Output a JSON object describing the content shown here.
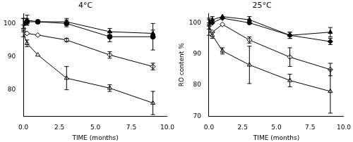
{
  "chart_data": [
    {
      "type": "line",
      "title": "4°C",
      "x_label": "TIME (months)",
      "x": [
        0,
        0.25,
        1,
        3,
        6,
        9
      ],
      "xlim": [
        0,
        10
      ],
      "xticks": [
        {
          "value": 0,
          "label": "0.0"
        },
        {
          "value": 2.5,
          "label": "2.5"
        },
        {
          "value": 5,
          "label": "5.0"
        },
        {
          "value": 7.5,
          "label": "7.5"
        },
        {
          "value": 10,
          "label": "10.0"
        }
      ],
      "ylim": [
        72,
        103
      ],
      "yticks": [
        80,
        90,
        100
      ],
      "grid": false,
      "series": [
        {
          "color": "#000000",
          "marker": "circle",
          "line_style": "solid",
          "values": [
            100,
            100.5,
            100.5,
            100,
            96,
            96
          ],
          "errors": [
            1.5,
            1,
            null,
            1,
            1.5,
            4
          ]
        },
        {
          "color": "#000000",
          "marker": "triangle",
          "line_style": "solid",
          "values": [
            100,
            101,
            100.5,
            100.5,
            97.5,
            97
          ],
          "errors": [
            1.5,
            1.5,
            null,
            1,
            1,
            1
          ]
        },
        {
          "color": "#000000",
          "marker": "open-diamond",
          "line_style": "solid",
          "values": [
            98.5,
            97,
            96.5,
            95,
            90.5,
            87
          ],
          "errors": [
            1,
            null,
            null,
            0.5,
            1,
            1
          ]
        },
        {
          "color": "#000000",
          "marker": "open-triangle",
          "line_style": "solid",
          "values": [
            97,
            94,
            90.5,
            83.5,
            80.5,
            76
          ],
          "errors": [
            1,
            1,
            null,
            3.5,
            1,
            3.5
          ]
        }
      ]
    },
    {
      "type": "line",
      "title": "25°C",
      "x_label": "TIME (months)",
      "y_label": "RO content %",
      "x": [
        0,
        0.25,
        1,
        3,
        6,
        9
      ],
      "xlim": [
        0,
        10
      ],
      "xticks": [
        {
          "value": 0,
          "label": "0.0"
        },
        {
          "value": 2.5,
          "label": "2.5"
        },
        {
          "value": 5,
          "label": "5.0"
        },
        {
          "value": 7.5,
          "label": "7.5"
        },
        {
          "value": 10,
          "label": "10.0"
        }
      ],
      "ylim": [
        70,
        103
      ],
      "yticks": [
        70,
        80,
        90,
        100
      ],
      "grid": false,
      "series": [
        {
          "color": "#000000",
          "marker": "triangle",
          "line_style": "solid",
          "values": [
            100.5,
            101,
            102,
            101,
            96,
            97
          ],
          "errors": [
            1,
            1,
            null,
            1,
            1,
            1.5
          ]
        },
        {
          "color": "#000000",
          "marker": "diamond",
          "line_style": "solid",
          "values": [
            100,
            100,
            101.5,
            100,
            96,
            94
          ],
          "errors": [
            1,
            null,
            null,
            0.5,
            1,
            1
          ]
        },
        {
          "color": "#000000",
          "marker": "open-diamond",
          "line_style": "solid",
          "values": [
            99,
            97,
            99.5,
            94.5,
            89,
            85
          ],
          "errors": [
            1,
            null,
            null,
            1,
            3,
            2
          ]
        },
        {
          "color": "#000000",
          "marker": "open-triangle",
          "line_style": "solid",
          "values": [
            97.5,
            96,
            91,
            86.5,
            81.5,
            78
          ],
          "errors": [
            1.5,
            1,
            1,
            6,
            2,
            7
          ]
        }
      ]
    }
  ]
}
